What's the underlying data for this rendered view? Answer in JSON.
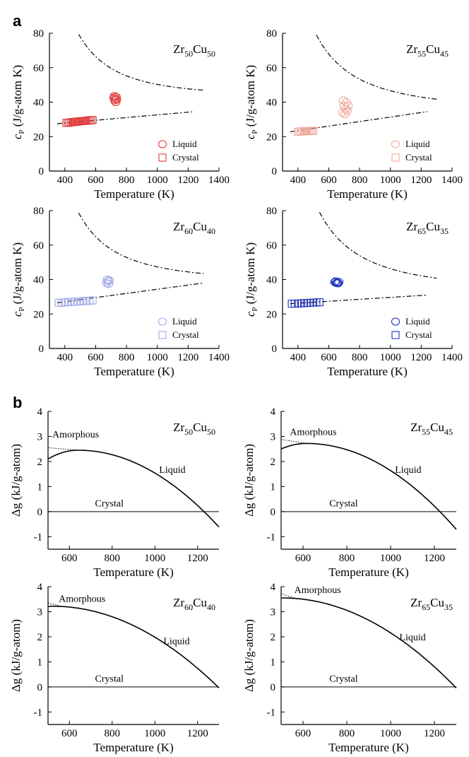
{
  "panel_labels": [
    "a",
    "b"
  ],
  "chart_data": [
    {
      "type": "scatter",
      "panel": "a",
      "alloy": {
        "base": "Zr",
        "n1": "50",
        "el2": "Cu",
        "n2": "50"
      },
      "xlabel": "Temperature (K)",
      "ylabel": "cP (J/g-atom K)",
      "xlim": [
        300,
        1400
      ],
      "ylim": [
        0,
        80
      ],
      "xticks": [
        400,
        600,
        800,
        1000,
        1200,
        1400
      ],
      "yticks": [
        0,
        20,
        40,
        60,
        80
      ],
      "color": "#e03a3a",
      "filled": false,
      "legend": [
        "Liquid",
        "Crystal"
      ],
      "liquid": {
        "x": [
          718,
          722,
          725,
          728,
          730,
          733,
          735
        ],
        "y": [
          42.5,
          43.5,
          41.0,
          42.0,
          40.0,
          43.0,
          41.5
        ]
      },
      "crystal": {
        "x": [
          410,
          420,
          430,
          440,
          450,
          460,
          470,
          480,
          490,
          500,
          510,
          520,
          530,
          540,
          550,
          560,
          570,
          580
        ],
        "y": [
          28,
          28,
          28.2,
          28.3,
          28.4,
          28.5,
          28.6,
          28.6,
          28.8,
          28.9,
          29.0,
          29.0,
          29.1,
          29.2,
          29.3,
          29.4,
          29.5,
          29.6
        ]
      },
      "liquid_fit": {
        "a": 40.6,
        "b": 9500000.0,
        "c": 0.0018
      },
      "crystal_fit": {
        "x0": 350,
        "y0": 27.5,
        "x1": 1240,
        "y1": 34.5
      }
    },
    {
      "type": "scatter",
      "panel": "a",
      "alloy": {
        "base": "Zr",
        "n1": "55",
        "el2": "Cu",
        "n2": "45"
      },
      "xlabel": "Temperature (K)",
      "ylabel": "cP (J/g-atom K)",
      "xlim": [
        300,
        1400
      ],
      "ylim": [
        0,
        80
      ],
      "xticks": [
        400,
        600,
        800,
        1000,
        1200,
        1400
      ],
      "yticks": [
        0,
        20,
        40,
        60,
        80
      ],
      "color": "#f0a898",
      "filled": false,
      "legend": [
        "Liquid",
        "Crystal"
      ],
      "liquid": {
        "x": [
          690,
          695,
          700,
          705,
          710,
          715,
          720,
          725
        ],
        "y": [
          34,
          41,
          38,
          33,
          36,
          40,
          35,
          38
        ]
      },
      "crystal": {
        "x": [
          400,
          410,
          420,
          430,
          440,
          450,
          460,
          470,
          480,
          490,
          500
        ],
        "y": [
          22.8,
          22.9,
          23,
          23,
          23.1,
          23.1,
          23.2,
          23.2,
          23.3,
          23.3,
          23.4
        ]
      },
      "liquid_fit": {
        "a": 34.6,
        "b": 12000000.0,
        "c": 0.0,
        "decline": 0.0
      },
      "crystal_fit": {
        "x0": 350,
        "y0": 22.8,
        "x1": 1240,
        "y1": 34.5
      }
    },
    {
      "type": "scatter",
      "panel": "a",
      "alloy": {
        "base": "Zr",
        "n1": "60",
        "el2": "Cu",
        "n2": "40"
      },
      "xlabel": "Temperature (K)",
      "ylabel": "cP (J/g-atom K)",
      "xlim": [
        300,
        1400
      ],
      "ylim": [
        0,
        80
      ],
      "xticks": [
        400,
        600,
        800,
        1000,
        1200,
        1400
      ],
      "yticks": [
        0,
        20,
        40,
        60,
        80
      ],
      "color": "#a0a8e8",
      "filled": false,
      "legend": [
        "Liquid",
        "Crystal"
      ],
      "liquid": {
        "x": [
          672,
          676,
          680,
          684,
          688
        ],
        "y": [
          38,
          40,
          39,
          37.5,
          39.5
        ]
      },
      "crystal": {
        "x": [
          360,
          380,
          400,
          420,
          440,
          460,
          480,
          500,
          520,
          540,
          560,
          580
        ],
        "y": [
          26.5,
          26.6,
          26.7,
          26.9,
          27.0,
          27.1,
          27.2,
          27.3,
          27.5,
          27.6,
          27.7,
          27.9
        ]
      },
      "liquid_fit": {
        "a": 37.3,
        "b": 10000000.0,
        "c": 0.0006
      },
      "crystal_fit": {
        "x0": 350,
        "y0": 26.5,
        "x1": 1300,
        "y1": 38
      }
    },
    {
      "type": "scatter",
      "panel": "a",
      "alloy": {
        "base": "Zr",
        "n1": "65",
        "el2": "Cu",
        "n2": "35"
      },
      "xlabel": "Temperature (K)",
      "ylabel": "cP (J/g-atom K)",
      "xlim": [
        300,
        1400
      ],
      "ylim": [
        0,
        80
      ],
      "xticks": [
        400,
        600,
        800,
        1000,
        1200,
        1400
      ],
      "yticks": [
        0,
        20,
        40,
        60,
        80
      ],
      "color": "#2233bb",
      "filled": false,
      "legend": [
        "Liquid",
        "Crystal"
      ],
      "liquid": {
        "x": [
          640,
          645,
          650,
          655,
          660,
          665
        ],
        "y": [
          38.5,
          39,
          38,
          38.2,
          37.8,
          38.6
        ]
      },
      "crystal": {
        "x": [
          360,
          380,
          400,
          420,
          440,
          460,
          480,
          500,
          520,
          540
        ],
        "y": [
          26,
          26,
          26.1,
          26.2,
          26.3,
          26.4,
          26.5,
          26.6,
          26.7,
          26.8
        ]
      },
      "liquid_fit": {
        "a": 32.8,
        "b": 13500000.0,
        "c": 0.0
      },
      "crystal_fit": {
        "x0": 350,
        "y0": 26,
        "x1": 1240,
        "y1": 31
      }
    },
    {
      "type": "line",
      "panel": "b",
      "alloy": {
        "base": "Zr",
        "n1": "50",
        "el2": "Cu",
        "n2": "50"
      },
      "xlabel": "Temperature (K)",
      "ylabel": "Δg (kJ/g-atom)",
      "xlim": [
        500,
        1300
      ],
      "ylim": [
        -1.5,
        4
      ],
      "xticks": [
        600,
        800,
        1000,
        1200
      ],
      "yticks": [
        -1,
        0,
        1,
        2,
        3,
        4
      ],
      "labels": {
        "amorphous": "Amorphous",
        "liquid": "Liquid",
        "crystal": "Crystal"
      },
      "peak": {
        "x": 640,
        "y": 2.45
      },
      "zero_cross": 1230,
      "start_y": 2.1,
      "amorphous_start": 2.55,
      "label_pos": {
        "amorphous": [
          520,
          2.95
        ],
        "liquid": [
          1020,
          1.55
        ],
        "crystal": [
          720,
          0.2
        ]
      }
    },
    {
      "type": "line",
      "panel": "b",
      "alloy": {
        "base": "Zr",
        "n1": "55",
        "el2": "Cu",
        "n2": "45"
      },
      "xlabel": "Temperature (K)",
      "ylabel": "Δg (kJ/g-atom)",
      "xlim": [
        500,
        1300
      ],
      "ylim": [
        -1.5,
        4
      ],
      "xticks": [
        600,
        800,
        1000,
        1200
      ],
      "yticks": [
        -1,
        0,
        1,
        2,
        3,
        4
      ],
      "labels": {
        "amorphous": "Amorphous",
        "liquid": "Liquid",
        "crystal": "Crystal"
      },
      "peak": {
        "x": 615,
        "y": 2.72
      },
      "zero_cross": 1225,
      "start_y": 2.5,
      "amorphous_start": 2.88,
      "label_pos": {
        "amorphous": [
          540,
          3.05
        ],
        "liquid": [
          1020,
          1.55
        ],
        "crystal": [
          720,
          0.2
        ]
      }
    },
    {
      "type": "line",
      "panel": "b",
      "alloy": {
        "base": "Zr",
        "n1": "60",
        "el2": "Cu",
        "n2": "40"
      },
      "xlabel": "Temperature (K)",
      "ylabel": "Δg (kJ/g-atom)",
      "xlim": [
        500,
        1300
      ],
      "ylim": [
        -1.5,
        4
      ],
      "xticks": [
        600,
        800,
        1000,
        1200
      ],
      "yticks": [
        -1,
        0,
        1,
        2,
        3,
        4
      ],
      "labels": {
        "amorphous": "Amorphous",
        "liquid": "Liquid",
        "crystal": "Crystal"
      },
      "peak": {
        "x": 520,
        "y": 3.22
      },
      "zero_cross": 1295,
      "start_y": 3.2,
      "amorphous_start": 3.35,
      "label_pos": {
        "amorphous": [
          550,
          3.4
        ],
        "liquid": [
          1040,
          1.7
        ],
        "crystal": [
          720,
          0.2
        ]
      }
    },
    {
      "type": "line",
      "panel": "b",
      "alloy": {
        "base": "Zr",
        "n1": "65",
        "el2": "Cu",
        "n2": "35"
      },
      "xlabel": "Temperature (K)",
      "ylabel": "Δg (kJ/g-atom)",
      "xlim": [
        500,
        1300
      ],
      "ylim": [
        -1.5,
        4
      ],
      "xticks": [
        600,
        800,
        1000,
        1200
      ],
      "yticks": [
        -1,
        0,
        1,
        2,
        3,
        4
      ],
      "labels": {
        "amorphous": "Amorphous",
        "liquid": "Liquid",
        "crystal": "Crystal"
      },
      "peak": {
        "x": 505,
        "y": 3.55
      },
      "zero_cross": 1295,
      "start_y": 3.55,
      "amorphous_start": 3.72,
      "label_pos": {
        "amorphous": [
          560,
          3.75
        ],
        "liquid": [
          1040,
          1.85
        ],
        "crystal": [
          720,
          0.2
        ]
      }
    }
  ]
}
